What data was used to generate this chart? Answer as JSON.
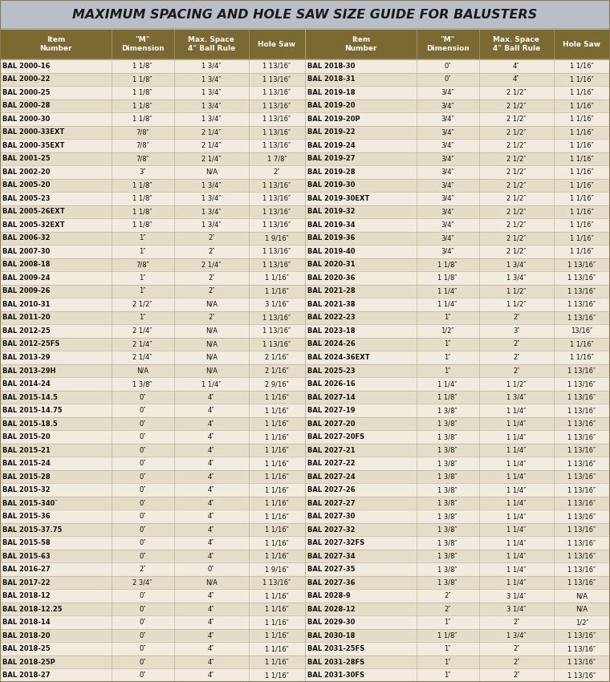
{
  "title": "MAXIMUM SPACING AND HOLE SAW SIZE GUIDE FOR BALUSTERS",
  "title_bg": "#b8bfc8",
  "header_bg": "#7a6a32",
  "header_fg": "#ffffff",
  "row_bg_odd": "#f2ece0",
  "row_bg_even": "#e5ddc8",
  "grid_color": "#b8aa88",
  "outer_border_color": "#8a7a50",
  "col_headers": [
    "Item\nNumber",
    "\"M\"\nDimension",
    "Max. Space\n4\" Ball Rule",
    "Hole Saw"
  ],
  "left_data": [
    [
      "BAL 2000-16",
      "1 1/8″",
      "1 3/4″",
      "1 13/16″"
    ],
    [
      "BAL 2000-22",
      "1 1/8″",
      "1 3/4″",
      "1 13/16″"
    ],
    [
      "BAL 2000-25",
      "1 1/8″",
      "1 3/4″",
      "1 13/16″"
    ],
    [
      "BAL 2000-28",
      "1 1/8″",
      "1 3/4″",
      "1 13/16″"
    ],
    [
      "BAL 2000-30",
      "1 1/8″",
      "1 3/4″",
      "1 13/16″"
    ],
    [
      "BAL 2000-33EXT",
      "7/8″",
      "2 1/4″",
      "1 13/16″"
    ],
    [
      "BAL 2000-35EXT",
      "7/8″",
      "2 1/4″",
      "1 13/16″"
    ],
    [
      "BAL 2001-25",
      "7/8″",
      "2 1/4″",
      "1 7/8″"
    ],
    [
      "BAL 2002-20",
      "3″",
      "N/A",
      "2″"
    ],
    [
      "BAL 2005-20",
      "1 1/8″",
      "1 3/4″",
      "1 13/16″"
    ],
    [
      "BAL 2005-23",
      "1 1/8″",
      "1 3/4″",
      "1 13/16″"
    ],
    [
      "BAL 2005-26EXT",
      "1 1/8″",
      "1 3/4″",
      "1 13/16″"
    ],
    [
      "BAL 2005-32EXT",
      "1 1/8″",
      "1 3/4″",
      "1 13/16″"
    ],
    [
      "BAL 2006-32",
      "1″",
      "2″",
      "1 9/16″"
    ],
    [
      "BAL 2007-30",
      "1″",
      "2″",
      "1 13/16″"
    ],
    [
      "BAL 2008-18",
      "7/8″",
      "2 1/4″",
      "1 13/16″"
    ],
    [
      "BAL 2009-24",
      "1″",
      "2″",
      "1 1/16″"
    ],
    [
      "BAL 2009-26",
      "1″",
      "2″",
      "1 1/16″"
    ],
    [
      "BAL 2010-31",
      "2 1/2″",
      "N/A",
      "3 1/16″"
    ],
    [
      "BAL 2011-20",
      "1″",
      "2″",
      "1 13/16″"
    ],
    [
      "BAL 2012-25",
      "2 1/4″",
      "N/A",
      "1 13/16″"
    ],
    [
      "BAL 2012-25FS",
      "2 1/4″",
      "N/A",
      "1 13/16″"
    ],
    [
      "BAL 2013-29",
      "2 1/4″",
      "N/A",
      "2 1/16″"
    ],
    [
      "BAL 2013-29H",
      "N/A",
      "N/A",
      "2 1/16″"
    ],
    [
      "BAL 2014-24",
      "1 3/8″",
      "1 1/4″",
      "2 9/16″"
    ],
    [
      "BAL 2015-14.5",
      "0″",
      "4″",
      "1 1/16″"
    ],
    [
      "BAL 2015-14.75",
      "0″",
      "4″",
      "1 1/16″"
    ],
    [
      "BAL 2015-18.5",
      "0″",
      "4″",
      "1 1/16″"
    ],
    [
      "BAL 2015-20",
      "0″",
      "4″",
      "1 1/16″"
    ],
    [
      "BAL 2015-21",
      "0″",
      "4″",
      "1 1/16″"
    ],
    [
      "BAL 2015-24",
      "0″",
      "4″",
      "1 1/16″"
    ],
    [
      "BAL 2015-28",
      "0″",
      "4″",
      "1 1/16″"
    ],
    [
      "BAL 2015-32",
      "0″",
      "4″",
      "1 1/16″"
    ],
    [
      "BAL 2015-340″",
      "0″",
      "4″",
      "1 1/16″"
    ],
    [
      "BAL 2015-36",
      "0″",
      "4″",
      "1 1/16″"
    ],
    [
      "BAL 2015-37.75",
      "0″",
      "4″",
      "1 1/16″"
    ],
    [
      "BAL 2015-58",
      "0″",
      "4″",
      "1 1/16″"
    ],
    [
      "BAL 2015-63",
      "0″",
      "4″",
      "1 1/16″"
    ],
    [
      "BAL 2016-27",
      "2″",
      "0″",
      "1 9/16″"
    ],
    [
      "BAL 2017-22",
      "2 3/4″",
      "N/A",
      "1 13/16″"
    ],
    [
      "BAL 2018-12",
      "0″",
      "4″",
      "1 1/16″"
    ],
    [
      "BAL 2018-12.25",
      "0″",
      "4″",
      "1 1/16″"
    ],
    [
      "BAL 2018-14",
      "0″",
      "4″",
      "1 1/16″"
    ],
    [
      "BAL 2018-20",
      "0″",
      "4″",
      "1 1/16″"
    ],
    [
      "BAL 2018-25",
      "0″",
      "4″",
      "1 1/16″"
    ],
    [
      "BAL 2018-25P",
      "0″",
      "4″",
      "1 1/16″"
    ],
    [
      "BAL 2018-27",
      "0″",
      "4″",
      "1 1/16″"
    ]
  ],
  "right_data": [
    [
      "BAL 2018-30",
      "0″",
      "4″",
      "1 1/16″"
    ],
    [
      "BAL 2018-31",
      "0″",
      "4″",
      "1 1/16″"
    ],
    [
      "BAL 2019-18",
      "3/4″",
      "2 1/2″",
      "1 1/16″"
    ],
    [
      "BAL 2019-20",
      "3/4″",
      "2 1/2″",
      "1 1/16″"
    ],
    [
      "BAL 2019-20P",
      "3/4″",
      "2 1/2″",
      "1 1/16″"
    ],
    [
      "BAL 2019-22",
      "3/4″",
      "2 1/2″",
      "1 1/16″"
    ],
    [
      "BAL 2019-24",
      "3/4″",
      "2 1/2″",
      "1 1/16″"
    ],
    [
      "BAL 2019-27",
      "3/4″",
      "2 1/2″",
      "1 1/16″"
    ],
    [
      "BAL 2019-28",
      "3/4″",
      "2 1/2″",
      "1 1/16″"
    ],
    [
      "BAL 2019-30",
      "3/4″",
      "2 1/2″",
      "1 1/16″"
    ],
    [
      "BAL 2019-30EXT",
      "3/4″",
      "2 1/2″",
      "1 1/16″"
    ],
    [
      "BAL 2019-32",
      "3/4″",
      "2 1/2″",
      "1 1/16″"
    ],
    [
      "BAL 2019-34",
      "3/4″",
      "2 1/2″",
      "1 1/16″"
    ],
    [
      "BAL 2019-36",
      "3/4″",
      "2 1/2″",
      "1 1/16″"
    ],
    [
      "BAL 2019-40",
      "3/4″",
      "2 1/2″",
      "1 1/16″"
    ],
    [
      "BAL 2020-31",
      "1 1/8″",
      "1 3/4″",
      "1 13/16″"
    ],
    [
      "BAL 2020-36",
      "1 1/8″",
      "1 3/4″",
      "1 13/16″"
    ],
    [
      "BAL 2021-28",
      "1 1/4″",
      "1 1/2″",
      "1 13/16″"
    ],
    [
      "BAL 2021-38",
      "1 1/4″",
      "1 1/2″",
      "1 13/16″"
    ],
    [
      "BAL 2022-23",
      "1″",
      "2″",
      "1 13/16″"
    ],
    [
      "BAL 2023-18",
      "1/2″",
      "3″",
      "13/16″"
    ],
    [
      "BAL 2024-26",
      "1″",
      "2″",
      "1 1/16″"
    ],
    [
      "BAL 2024-36EXT",
      "1″",
      "2″",
      "1 1/16″"
    ],
    [
      "BAL 2025-23",
      "1″",
      "2″",
      "1 13/16″"
    ],
    [
      "BAL 2026-16",
      "1 1/4″",
      "1 1/2″",
      "1 13/16″"
    ],
    [
      "BAL 2027-14",
      "1 1/8″",
      "1 3/4″",
      "1 13/16″"
    ],
    [
      "BAL 2027-19",
      "1 3/8″",
      "1 1/4″",
      "1 13/16″"
    ],
    [
      "BAL 2027-20",
      "1 3/8″",
      "1 1/4″",
      "1 13/16″"
    ],
    [
      "BAL 2027-20FS",
      "1 3/8″",
      "1 1/4″",
      "1 13/16″"
    ],
    [
      "BAL 2027-21",
      "1 3/8″",
      "1 1/4″",
      "1 13/16″"
    ],
    [
      "BAL 2027-22",
      "1 3/8″",
      "1 1/4″",
      "1 13/16″"
    ],
    [
      "BAL 2027-24",
      "1 3/8″",
      "1 1/4″",
      "1 13/16″"
    ],
    [
      "BAL 2027-26",
      "1 3/8″",
      "1 1/4″",
      "1 13/16″"
    ],
    [
      "BAL 2027-27",
      "1 3/8″",
      "1 1/4″",
      "1 13/16″"
    ],
    [
      "BAL 2027-30",
      "1 3/8″",
      "1 1/4″",
      "1 13/16″"
    ],
    [
      "BAL 2027-32",
      "1 3/8″",
      "1 1/4″",
      "1 13/16″"
    ],
    [
      "BAL 2027-32FS",
      "1 3/8″",
      "1 1/4″",
      "1 13/16″"
    ],
    [
      "BAL 2027-34",
      "1 3/8″",
      "1 1/4″",
      "1 13/16″"
    ],
    [
      "BAL 2027-35",
      "1 3/8″",
      "1 1/4″",
      "1 13/16″"
    ],
    [
      "BAL 2027-36",
      "1 3/8″",
      "1 1/4″",
      "1 13/16″"
    ],
    [
      "BAL 2028-9",
      "2″",
      "3 1/4″",
      "N/A"
    ],
    [
      "BAL 2028-12",
      "2″",
      "3 1/4″",
      "N/A"
    ],
    [
      "BAL 2029-30",
      "1″",
      "2″",
      "1/2″"
    ],
    [
      "BAL 2030-18",
      "1 1/8″",
      "1 3/4″",
      "1 13/16″"
    ],
    [
      "BAL 2031-25FS",
      "1″",
      "2″",
      "1 13/16″"
    ],
    [
      "BAL 2031-28FS",
      "1″",
      "2″",
      "1 13/16″"
    ],
    [
      "BAL 2031-30FS",
      "1″",
      "2″",
      "1 13/16″"
    ]
  ],
  "figsize": [
    7.6,
    8.5
  ],
  "dpi": 100
}
